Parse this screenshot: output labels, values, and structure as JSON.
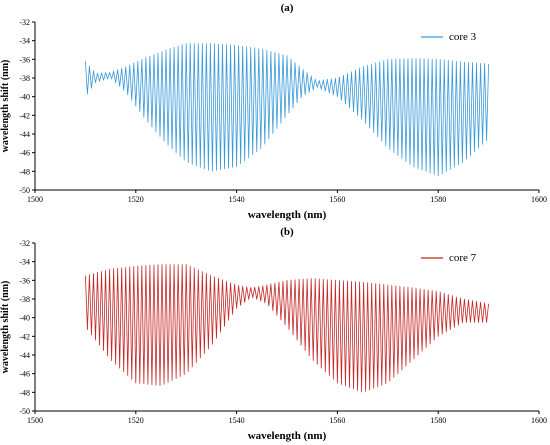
{
  "chart_data": [
    {
      "panel_label": "(a)",
      "type": "line",
      "xlabel": "wavelength (nm)",
      "ylabel": "wavelength shift (nm)",
      "xlim": [
        1500,
        1600
      ],
      "ylim": [
        -50,
        -32
      ],
      "xticks": [
        1500,
        1520,
        1540,
        1560,
        1580,
        1600
      ],
      "yticks": [
        -50,
        -48,
        -46,
        -44,
        -42,
        -40,
        -38,
        -36,
        -34,
        -32
      ],
      "legend_position": "top-right",
      "grid": false,
      "series": [
        {
          "name": "core 3",
          "color": "#3a9ad9",
          "x_range": [
            1510,
            1590
          ],
          "oscillation_period_nm": 0.8,
          "upper_envelope": {
            "x": [
              1510,
              1512,
              1515,
              1518,
              1522,
              1526,
              1530,
              1535,
              1540,
              1545,
              1550,
              1553,
              1556,
              1560,
              1565,
              1570,
              1575,
              1580,
              1585,
              1590
            ],
            "y": [
              -36.2,
              -37.5,
              -37.4,
              -36.8,
              -35.8,
              -35.0,
              -34.3,
              -34.3,
              -34.5,
              -34.9,
              -35.6,
              -37.0,
              -38.3,
              -38.0,
              -36.8,
              -36.0,
              -35.9,
              -36.0,
              -36.3,
              -36.5
            ]
          },
          "lower_envelope": {
            "x": [
              1510,
              1512,
              1515,
              1518,
              1522,
              1526,
              1530,
              1535,
              1540,
              1545,
              1550,
              1553,
              1556,
              1560,
              1565,
              1570,
              1575,
              1580,
              1585,
              1590
            ],
            "y": [
              -40.0,
              -38.5,
              -38.0,
              -39.5,
              -42.5,
              -45.0,
              -47.0,
              -48.0,
              -47.5,
              -45.5,
              -42.0,
              -40.0,
              -39.0,
              -40.0,
              -42.5,
              -45.5,
              -47.5,
              -48.5,
              -47.0,
              -44.5
            ]
          }
        }
      ]
    },
    {
      "panel_label": "(b)",
      "type": "line",
      "xlabel": "wavelength (nm)",
      "ylabel": "wavelength shift (nm)",
      "xlim": [
        1500,
        1600
      ],
      "ylim": [
        -50,
        -32
      ],
      "xticks": [
        1500,
        1520,
        1540,
        1560,
        1580,
        1600
      ],
      "yticks": [
        -50,
        -48,
        -46,
        -44,
        -42,
        -40,
        -38,
        -36,
        -34,
        -32
      ],
      "legend_position": "top-right",
      "grid": false,
      "series": [
        {
          "name": "core 7",
          "color": "#c62828",
          "x_range": [
            1510,
            1590
          ],
          "oscillation_period_nm": 0.8,
          "upper_envelope": {
            "x": [
              1510,
              1515,
              1520,
              1525,
              1530,
              1535,
              1540,
              1543,
              1546,
              1550,
              1555,
              1560,
              1565,
              1570,
              1575,
              1580,
              1585,
              1590
            ],
            "y": [
              -35.5,
              -34.8,
              -34.5,
              -34.3,
              -34.3,
              -35.5,
              -36.5,
              -36.8,
              -36.5,
              -36.0,
              -35.8,
              -36.0,
              -36.2,
              -36.5,
              -36.8,
              -37.2,
              -38.0,
              -38.5
            ]
          },
          "lower_envelope": {
            "x": [
              1510,
              1515,
              1520,
              1525,
              1530,
              1535,
              1540,
              1543,
              1546,
              1550,
              1555,
              1560,
              1565,
              1570,
              1575,
              1580,
              1585,
              1590
            ],
            "y": [
              -41.0,
              -44.5,
              -47.0,
              -47.3,
              -46.0,
              -43.0,
              -39.0,
              -37.8,
              -38.5,
              -41.0,
              -44.5,
              -47.0,
              -48.0,
              -47.0,
              -44.5,
              -42.0,
              -40.5,
              -40.5
            ]
          }
        }
      ]
    }
  ]
}
